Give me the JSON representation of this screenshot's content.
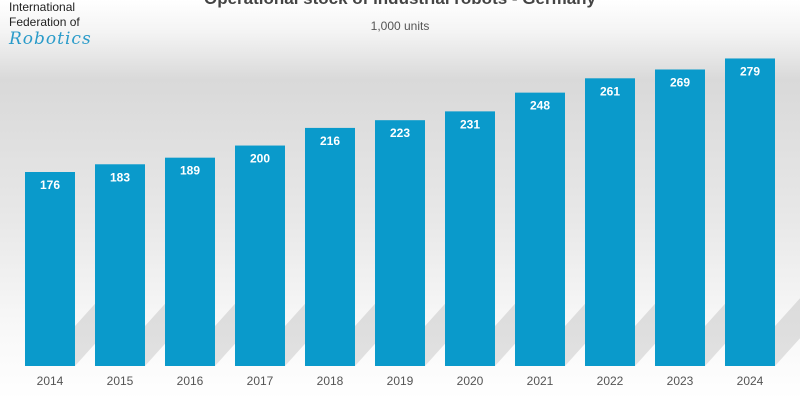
{
  "logo": {
    "line1": "International",
    "line2": "Federation of",
    "line3": "Robotics"
  },
  "chart_data": {
    "type": "bar",
    "title": "Operational stock of industrial robots - Germany",
    "subtitle": "1,000 units",
    "categories": [
      "2014",
      "2015",
      "2016",
      "2017",
      "2018",
      "2019",
      "2020",
      "2021",
      "2022",
      "2023",
      "2024"
    ],
    "values": [
      176,
      183,
      189,
      200,
      216,
      223,
      231,
      248,
      261,
      269,
      279
    ],
    "xlabel": "",
    "ylabel": "",
    "ylim": [
      0,
      300
    ],
    "bar_color": "#0a9acb",
    "label_color": "#ffffff"
  }
}
